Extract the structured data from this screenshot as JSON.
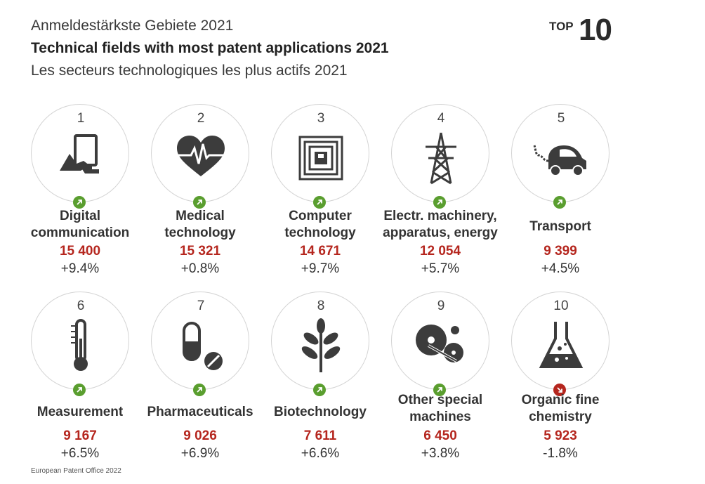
{
  "header": {
    "title_de": "Anmeldestärkste Gebiete 2021",
    "title_en": "Technical fields with most patent applications 2021",
    "title_fr": "Les secteurs technologiques les plus actifs 2021",
    "badge_top": "TOP",
    "badge_num": "10"
  },
  "colors": {
    "up": "#5a9e2f",
    "down": "#b5261e",
    "value": "#b5261e",
    "icon": "#3c3c3c"
  },
  "fields": [
    {
      "rank": "1",
      "name": "Digital communication",
      "name_lines": [
        "Digital",
        "communication"
      ],
      "applications": "15 400",
      "change": "+9.4%",
      "trend": "up",
      "icon": "tablet-hand-icon"
    },
    {
      "rank": "2",
      "name": "Medical technology",
      "name_lines": [
        "Medical",
        "technology"
      ],
      "applications": "15 321",
      "change": "+0.8%",
      "trend": "up",
      "icon": "heartbeat-icon"
    },
    {
      "rank": "3",
      "name": "Computer technology",
      "name_lines": [
        "Computer",
        "technology"
      ],
      "applications": "14 671",
      "change": "+9.7%",
      "trend": "up",
      "icon": "chip-icon"
    },
    {
      "rank": "4",
      "name": "Electr. machinery, apparatus, energy",
      "name_lines": [
        "Electr. machinery,",
        "apparatus, energy"
      ],
      "applications": "12 054",
      "change": "+5.7%",
      "trend": "up",
      "icon": "power-pylon-icon"
    },
    {
      "rank": "5",
      "name": "Transport",
      "name_lines": [
        "Transport"
      ],
      "applications": "9 399",
      "change": "+4.5%",
      "trend": "up",
      "icon": "electric-car-icon"
    },
    {
      "rank": "6",
      "name": "Measurement",
      "name_lines": [
        "Measurement"
      ],
      "applications": "9 167",
      "change": "+6.5%",
      "trend": "up",
      "icon": "thermometer-icon"
    },
    {
      "rank": "7",
      "name": "Pharmaceuticals",
      "name_lines": [
        "Pharmaceuticals"
      ],
      "applications": "9 026",
      "change": "+6.9%",
      "trend": "up",
      "icon": "pill-capsule-icon"
    },
    {
      "rank": "8",
      "name": "Biotechnology",
      "name_lines": [
        "Biotechnology"
      ],
      "applications": "7 611",
      "change": "+6.6%",
      "trend": "up",
      "icon": "leaf-icon"
    },
    {
      "rank": "9",
      "name": "Other special machines",
      "name_lines": [
        "Other special",
        "machines"
      ],
      "applications": "6 450",
      "change": "+3.8%",
      "trend": "up",
      "icon": "saw-machine-icon"
    },
    {
      "rank": "10",
      "name": "Organic fine chemistry",
      "name_lines": [
        "Organic fine",
        "chemistry"
      ],
      "applications": "5 923",
      "change": "-1.8%",
      "trend": "down",
      "icon": "flask-icon"
    }
  ],
  "footer": "European Patent Office 2022"
}
